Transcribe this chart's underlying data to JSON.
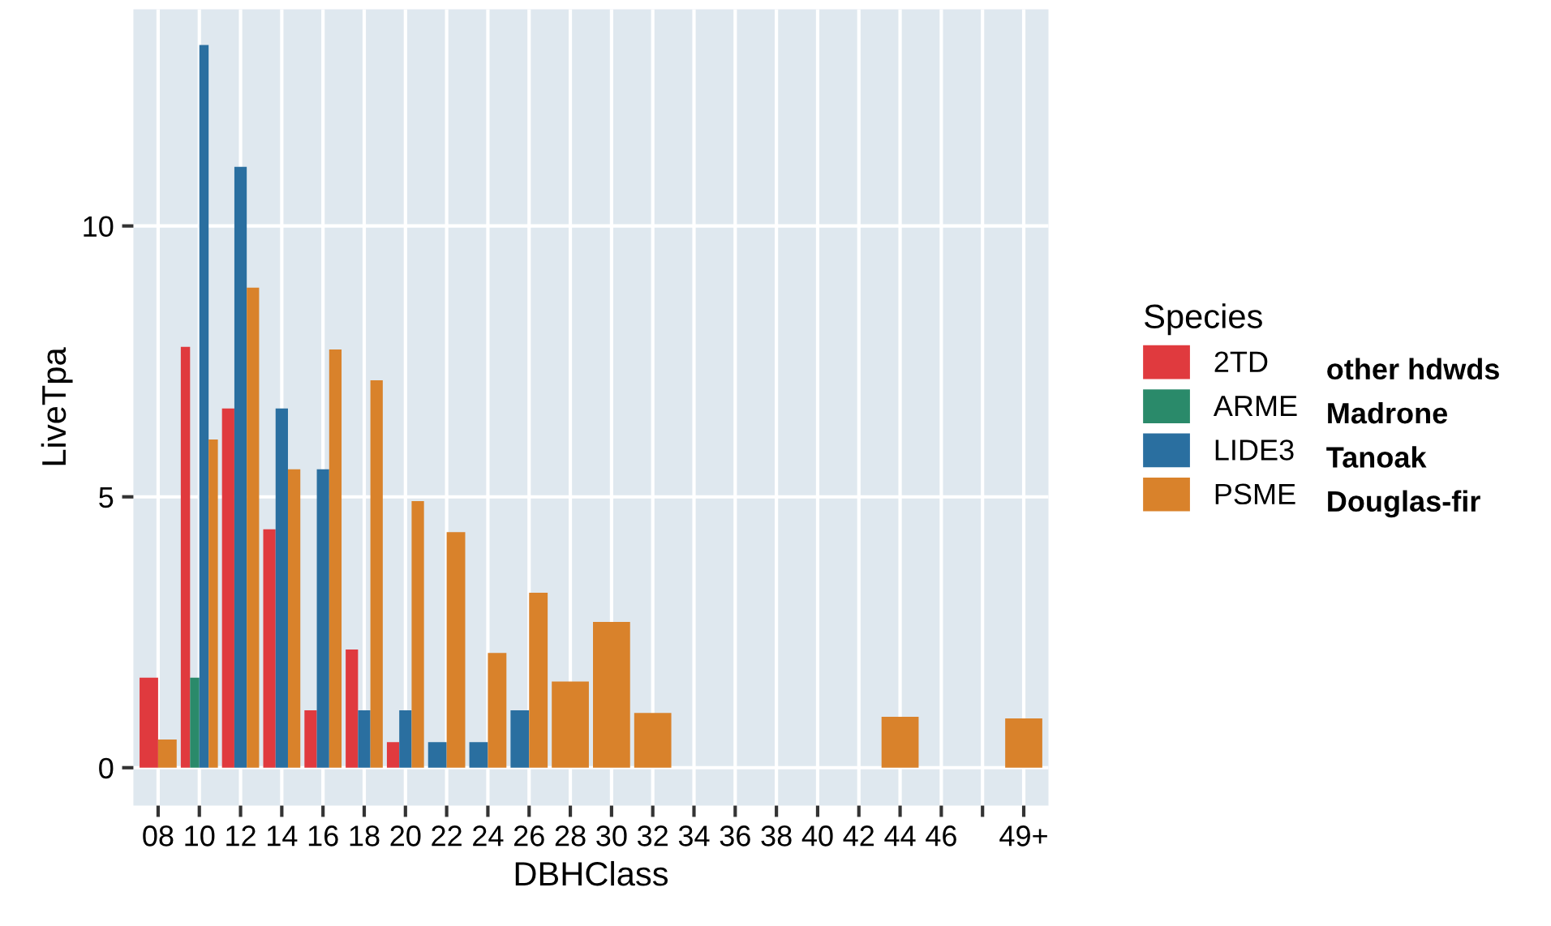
{
  "chart_data": {
    "type": "bar",
    "xlabel": "DBHClass",
    "ylabel": "LiveTpa",
    "legend_title": "Species",
    "categories": [
      "08",
      "10",
      "12",
      "14",
      "16",
      "18",
      "20",
      "22",
      "24",
      "26",
      "28",
      "30",
      "32",
      "34",
      "36",
      "38",
      "40",
      "42",
      "44",
      "46",
      null,
      "49+"
    ],
    "series": [
      {
        "name": "2TD",
        "color": "#e03a3e",
        "values": [
          1.66,
          7.77,
          6.63,
          4.4,
          1.06,
          2.18,
          0.47,
          null,
          null,
          null,
          null,
          null,
          null,
          null,
          null,
          null,
          null,
          null,
          null,
          null,
          null,
          null
        ]
      },
      {
        "name": "ARME",
        "color": "#2a8a6a",
        "values": [
          null,
          1.66,
          null,
          null,
          null,
          null,
          null,
          null,
          null,
          null,
          null,
          null,
          null,
          null,
          null,
          null,
          null,
          null,
          null,
          null,
          null,
          null
        ]
      },
      {
        "name": "LIDE3",
        "color": "#2a6fa0",
        "values": [
          null,
          13.34,
          11.09,
          6.63,
          5.51,
          1.06,
          1.06,
          0.47,
          0.47,
          1.06,
          null,
          null,
          null,
          null,
          null,
          null,
          null,
          null,
          null,
          null,
          null,
          null
        ]
      },
      {
        "name": "PSME",
        "color": "#d9822b",
        "values": [
          0.52,
          6.06,
          8.86,
          5.51,
          7.72,
          7.15,
          4.92,
          4.35,
          2.12,
          3.23,
          1.59,
          2.69,
          1.01,
          null,
          null,
          null,
          null,
          null,
          0.94,
          null,
          null,
          0.91
        ]
      }
    ],
    "annotations": [
      "other hdwds",
      "Madrone",
      "Tanoak",
      "Douglas-fir"
    ],
    "ylim": [
      -0.7,
      14
    ],
    "yticks": [
      0,
      5,
      10
    ],
    "grid": true,
    "legend": "right"
  }
}
